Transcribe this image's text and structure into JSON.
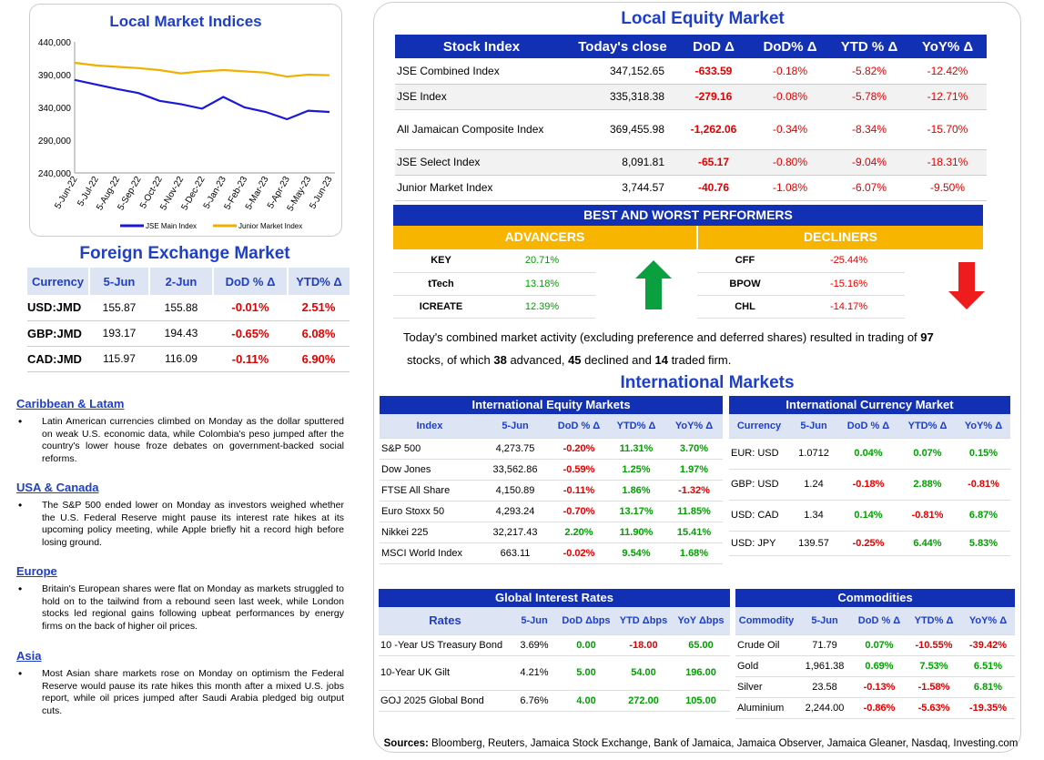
{
  "chart": {
    "title": "Local Market Indices",
    "y_ticks": [
      "440,000",
      "390,000",
      "340,000",
      "290,000",
      "240,000"
    ],
    "x_ticks": [
      "5-Jun-22",
      "5-Jul-22",
      "5-Aug-22",
      "5-Sep-22",
      "5-Oct-22",
      "5-Nov-22",
      "5-Dec-22",
      "5-Jan-23",
      "5-Feb-23",
      "5-Mar-23",
      "5-Apr-23",
      "5-May-23",
      "5-Jun-23"
    ],
    "legend": [
      "JSE Main Index",
      "Junior Market Index"
    ]
  },
  "chart_data": {
    "type": "line",
    "title": "Local Market Indices",
    "ylim": [
      240000,
      440000
    ],
    "x": [
      "5-Jun-22",
      "5-Jul-22",
      "5-Aug-22",
      "5-Sep-22",
      "5-Oct-22",
      "5-Nov-22",
      "5-Dec-22",
      "5-Jan-23",
      "5-Feb-23",
      "5-Mar-23",
      "5-Apr-23",
      "5-May-23",
      "5-Jun-23"
    ],
    "series": [
      {
        "name": "JSE Main Index",
        "color": "#1a1ad6",
        "values": [
          382000,
          375000,
          368000,
          362000,
          350000,
          345000,
          338000,
          356000,
          340000,
          333000,
          322000,
          335000,
          333000
        ]
      },
      {
        "name": "Junior Market Index",
        "color": "#f0b000",
        "values": [
          408000,
          404000,
          402000,
          400000,
          397000,
          392000,
          395000,
          397000,
          395000,
          393000,
          387000,
          390000,
          389000
        ]
      }
    ]
  },
  "fx": {
    "title": "Foreign Exchange Market",
    "headers": [
      "Currency",
      "5-Jun",
      "2-Jun",
      "DoD % Δ",
      "YTD% Δ"
    ],
    "rows": [
      {
        "c": "USD:JMD",
        "a": "155.87",
        "b": "155.88",
        "d": "-0.01%",
        "y": "2.51%"
      },
      {
        "c": "GBP:JMD",
        "a": "193.17",
        "b": "194.43",
        "d": "-0.65%",
        "y": "6.08%"
      },
      {
        "c": "CAD:JMD",
        "a": "115.97",
        "b": "116.09",
        "d": "-0.11%",
        "y": "6.90%"
      }
    ]
  },
  "news": [
    {
      "h": "Caribbean & Latam",
      "p": "Latin American currencies climbed on Monday as the dollar sputtered on weak U.S. economic data, while Colombia's peso jumped after the country's lower house froze debates on government-backed social reforms."
    },
    {
      "h": "USA & Canada",
      "p": "The S&P 500 ended lower on Monday as investors weighed whether the U.S. Federal Reserve might pause its interest rate hikes at its upcoming policy meeting, while Apple briefly hit a record high before losing ground."
    },
    {
      "h": "Europe",
      "p": "Britain's European shares were flat on Monday as markets struggled to hold on to the tailwind from a rebound seen last week, while London stocks led regional gains following upbeat performances by energy firms on the back of higher oil prices."
    },
    {
      "h": "Asia",
      "p": "Most Asian share markets rose on Monday on optimism the Federal Reserve would pause its rate hikes this month after a mixed U.S. jobs report, while oil prices jumped after Saudi Arabia pledged big output cuts."
    }
  ],
  "equity": {
    "title": "Local Equity Market",
    "headers": [
      "Stock Index",
      "Today's close",
      "DoD  Δ",
      "DoD% Δ",
      "YTD % Δ",
      "YoY% Δ"
    ],
    "rows": [
      [
        "JSE Combined Index",
        "347,152.65",
        "-633.59",
        "-0.18%",
        "-5.82%",
        "-12.42%"
      ],
      [
        "JSE Index",
        "335,318.38",
        "-279.16",
        "-0.08%",
        "-5.78%",
        "-12.71%"
      ],
      [
        "All Jamaican Composite Index",
        "369,455.98",
        "-1,262.06",
        "-0.34%",
        "-8.34%",
        "-15.70%"
      ],
      [
        "JSE Select Index",
        "8,091.81",
        "-65.17",
        "-0.80%",
        "-9.04%",
        "-18.31%"
      ],
      [
        "Junior Market Index",
        "3,744.57",
        "-40.76",
        "-1.08%",
        "-6.07%",
        "-9.50%"
      ]
    ]
  },
  "performers": {
    "title": "BEST AND WORST PERFORMERS",
    "adv_label": "ADVANCERS",
    "dec_label": "DECLINERS",
    "advancers": [
      [
        "KEY",
        "20.71%"
      ],
      [
        "tTech",
        "13.18%"
      ],
      [
        "ICREATE",
        "12.39%"
      ]
    ],
    "decliners": [
      [
        "CFF",
        "-25.44%"
      ],
      [
        "BPOW",
        "-15.16%"
      ],
      [
        "CHL",
        "-14.17%"
      ]
    ]
  },
  "summary": {
    "t1": "Today's combined market activity (excluding preference and deferred shares) resulted in trading of ",
    "n1": "97",
    "t2": "stocks, of which ",
    "n2": "38",
    "t3": " advanced, ",
    "n3": "45",
    "t4": " declined and ",
    "n4": "14",
    "t5": " traded firm."
  },
  "intl": {
    "title": "International Markets",
    "equity": {
      "title": "International Equity Markets",
      "headers": [
        "Index",
        "5-Jun",
        "DoD % Δ",
        "YTD% Δ",
        "YoY% Δ"
      ],
      "rows": [
        [
          "S&P 500",
          "4,273.75",
          "-0.20%",
          "11.31%",
          "3.70%"
        ],
        [
          "Dow Jones",
          "33,562.86",
          "-0.59%",
          "1.25%",
          "1.97%"
        ],
        [
          "FTSE All Share",
          "4,150.89",
          "-0.11%",
          "1.86%",
          "-1.32%"
        ],
        [
          "Euro Stoxx 50",
          "4,293.24",
          "-0.70%",
          "13.17%",
          "11.85%"
        ],
        [
          "Nikkei 225",
          "32,217.43",
          "2.20%",
          "11.90%",
          "15.41%"
        ],
        [
          "MSCI World Index",
          "663.11",
          "-0.02%",
          "9.54%",
          "1.68%"
        ]
      ]
    },
    "currency": {
      "title": "International Currency Market",
      "headers": [
        "Currency",
        "5-Jun",
        "DoD % Δ",
        "YTD% Δ",
        "YoY% Δ"
      ],
      "rows": [
        [
          "EUR: USD",
          "1.0712",
          "0.04%",
          "0.07%",
          "0.15%"
        ],
        [
          "GBP: USD",
          "1.24",
          "-0.18%",
          "2.88%",
          "-0.81%"
        ],
        [
          "USD: CAD",
          "1.34",
          "0.14%",
          "-0.81%",
          "6.87%"
        ],
        [
          "USD: JPY",
          "139.57",
          "-0.25%",
          "6.44%",
          "5.83%"
        ]
      ]
    },
    "rates": {
      "title": "Global Interest Rates",
      "headers": [
        "Rates",
        "5-Jun",
        "DoD Δbps",
        "YTD Δbps",
        "YoY Δbps"
      ],
      "rows": [
        [
          "10 -Year US Treasury Bond",
          "3.69%",
          "0.00",
          "-18.00",
          "65.00"
        ],
        [
          "10-Year UK Gilt",
          "4.21%",
          "5.00",
          "54.00",
          "196.00"
        ],
        [
          "GOJ 2025 Global Bond",
          "6.76%",
          "4.00",
          "272.00",
          "105.00"
        ]
      ]
    },
    "commodities": {
      "title": "Commodities",
      "headers": [
        "Commodity",
        "5-Jun",
        "DoD % Δ",
        "YTD% Δ",
        "YoY% Δ"
      ],
      "rows": [
        [
          "Crude Oil",
          "71.79",
          "0.07%",
          "-10.55%",
          "-39.42%"
        ],
        [
          "Gold",
          "1,961.38",
          "0.69%",
          "7.53%",
          "6.51%"
        ],
        [
          "Silver",
          "23.58",
          "-0.13%",
          "-1.58%",
          "6.81%"
        ],
        [
          "Aluminium",
          "2,244.00",
          "-0.86%",
          "-5.63%",
          "-19.35%"
        ]
      ]
    }
  },
  "sources": {
    "label": "Sources:",
    "text": " Bloomberg, Reuters, Jamaica Stock Exchange, Bank of Jamaica, Jamaica Observer, Jamaica Gleaner, Nasdaq, Investing.com"
  }
}
